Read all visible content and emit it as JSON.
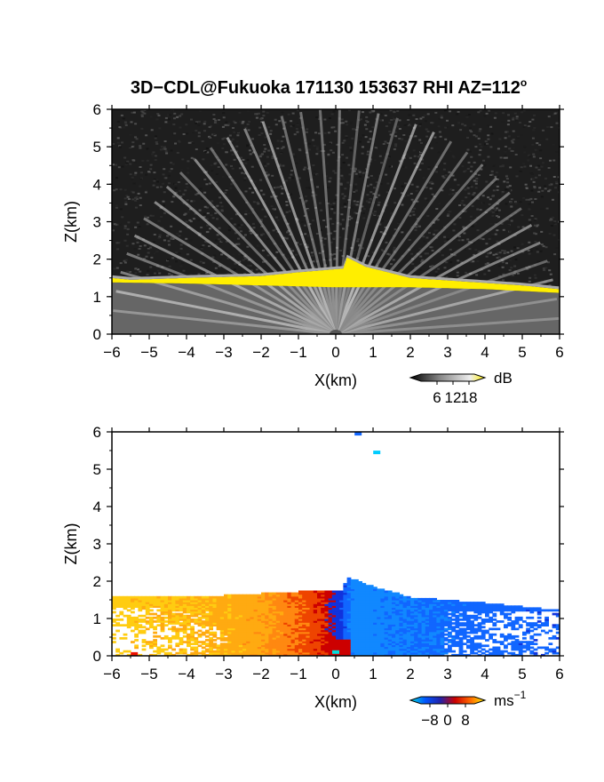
{
  "figure": {
    "title_main": "3D−CDL@Fukuoka 171130 153637 RHI AZ=112",
    "title_sup": "o"
  },
  "chart_data": [
    {
      "type": "heatmap",
      "quantity": "SNR",
      "xlabel": "X(km)",
      "ylabel": "Z(km)",
      "xlim": [
        -6,
        6
      ],
      "ylim": [
        0,
        6
      ],
      "xticks": [
        -6,
        -5,
        -4,
        -3,
        -2,
        -1,
        0,
        1,
        2,
        3,
        4,
        5,
        6
      ],
      "yticks": [
        0,
        1,
        2,
        3,
        4,
        5,
        6
      ],
      "colorbar": {
        "unit": "dB",
        "unit_sup": "",
        "ticks": [
          6,
          12,
          18
        ],
        "range": [
          0,
          20
        ],
        "colors": [
          "#000000",
          "#444444",
          "#888888",
          "#bbbbbb",
          "#eeeeee",
          "#ffee00"
        ]
      },
      "layer_top": [
        [
          -6,
          1.5
        ],
        [
          -5.5,
          1.45
        ],
        [
          -4,
          1.5
        ],
        [
          -2,
          1.55
        ],
        [
          -1,
          1.65
        ],
        [
          0.2,
          1.75
        ],
        [
          0.3,
          2.05
        ],
        [
          0.8,
          1.8
        ],
        [
          2,
          1.5
        ],
        [
          3.5,
          1.4
        ],
        [
          5,
          1.3
        ],
        [
          6,
          1.2
        ]
      ],
      "layer_base": [
        [
          -6,
          1.38
        ],
        [
          -4,
          1.35
        ],
        [
          -2,
          1.3
        ],
        [
          0,
          1.25
        ],
        [
          2,
          1.25
        ],
        [
          4,
          1.2
        ],
        [
          6,
          1.1
        ]
      ]
    },
    {
      "type": "heatmap",
      "quantity": "Doppler velocity",
      "xlabel": "X(km)",
      "ylabel": "Z(km)",
      "xlim": [
        -6,
        6
      ],
      "ylim": [
        0,
        6
      ],
      "xticks": [
        -6,
        -5,
        -4,
        -3,
        -2,
        -1,
        0,
        1,
        2,
        3,
        4,
        5,
        6
      ],
      "yticks": [
        0,
        1,
        2,
        3,
        4,
        5,
        6
      ],
      "colorbar": {
        "unit": "ms",
        "unit_sup": "−1",
        "ticks": [
          -8,
          0,
          8
        ],
        "range": [
          -12,
          12
        ],
        "colors": [
          "#00dddd",
          "#0055ff",
          "#2222aa",
          "#cc0000",
          "#ff6600",
          "#ffee00"
        ]
      },
      "echo_top": [
        [
          -6,
          1.6
        ],
        [
          -5,
          1.55
        ],
        [
          -3,
          1.6
        ],
        [
          -1,
          1.7
        ],
        [
          0.2,
          1.75
        ],
        [
          0.3,
          2.1
        ],
        [
          0.8,
          1.9
        ],
        [
          2,
          1.55
        ],
        [
          4,
          1.4
        ],
        [
          6,
          1.2
        ]
      ],
      "velocity_profile": [
        [
          -6,
          6
        ],
        [
          -4,
          5
        ],
        [
          -2,
          4
        ],
        [
          -1,
          2
        ],
        [
          -0.3,
          0.5
        ],
        [
          0,
          -1
        ],
        [
          0.5,
          -6
        ],
        [
          2,
          -5
        ],
        [
          4,
          -4
        ],
        [
          6,
          -3.5
        ]
      ],
      "isolated_echoes": [
        [
          0.6,
          5.95
        ],
        [
          1.1,
          5.45
        ],
        [
          -5.4,
          0.05
        ],
        [
          0,
          0.1
        ]
      ]
    }
  ]
}
